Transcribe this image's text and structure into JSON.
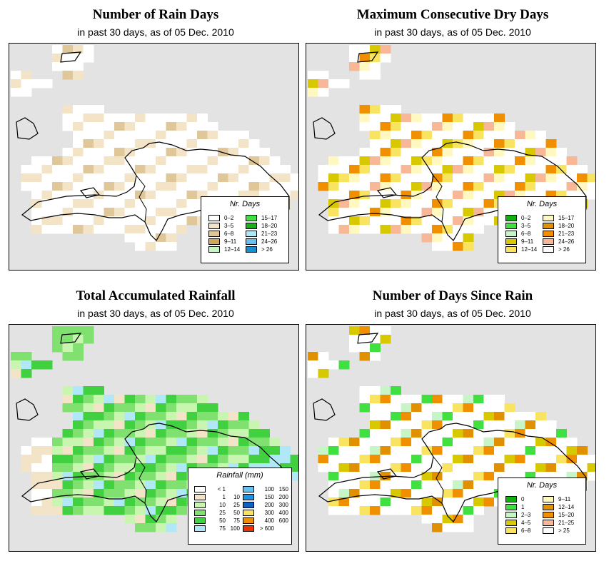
{
  "panels": [
    {
      "id": "rain-days",
      "title": "Number of Rain Days",
      "subtitle": "in past 30 days, as of  05 Dec. 2010",
      "legend": {
        "title": "Nr. Days",
        "items": [
          {
            "label": "0–2",
            "color": "#ffffff"
          },
          {
            "label": "3–5",
            "color": "#f3e4c8"
          },
          {
            "label": "6–8",
            "color": "#e0c79a"
          },
          {
            "label": "9–11",
            "color": "#cfa85a"
          },
          {
            "label": "12–14",
            "color": "#c8f5c8"
          },
          {
            "label": "15–17",
            "color": "#40e040"
          },
          {
            "label": "18–20",
            "color": "#18b018"
          },
          {
            "label": "21–23",
            "color": "#b0e8f8"
          },
          {
            "label": "24–26",
            "color": "#66c0f0"
          },
          {
            "label": "> 26",
            "color": "#1890d0"
          }
        ]
      }
    },
    {
      "id": "dry-days",
      "title": "Maximum Consecutive Dry Days",
      "subtitle": "in past 30 days, as of  05 Dec. 2010",
      "legend": {
        "title": "Nr. Days",
        "items": [
          {
            "label": "0–2",
            "color": "#10b010"
          },
          {
            "label": "3–5",
            "color": "#40e040"
          },
          {
            "label": "6–8",
            "color": "#c8f5c8"
          },
          {
            "label": "9–11",
            "color": "#d8c800"
          },
          {
            "label": "12–14",
            "color": "#f8e460"
          },
          {
            "label": "15–17",
            "color": "#fff8c0"
          },
          {
            "label": "18–20",
            "color": "#e09000"
          },
          {
            "label": "21–23",
            "color": "#f09000"
          },
          {
            "label": "24–26",
            "color": "#f8b898"
          },
          {
            "label": "> 26",
            "color": "#ffffff"
          }
        ]
      }
    },
    {
      "id": "rainfall",
      "title": "Total Accumulated Rainfall",
      "subtitle": "in past 30 days, as of  05 Dec. 2010",
      "legend": {
        "title": "Rainfall (mm)",
        "items": [
          {
            "lo": "< 1",
            "hi": "",
            "color": "#ffffff"
          },
          {
            "lo": "1",
            "hi": "10",
            "color": "#f3e4c8"
          },
          {
            "lo": "10",
            "hi": "25",
            "color": "#c8f5b0"
          },
          {
            "lo": "25",
            "hi": "50",
            "color": "#80e070"
          },
          {
            "lo": "50",
            "hi": "75",
            "color": "#40d040"
          },
          {
            "lo": "75",
            "hi": "100",
            "color": "#b0e8f8"
          },
          {
            "lo": "100",
            "hi": "150",
            "color": "#66c0f0"
          },
          {
            "lo": "150",
            "hi": "200",
            "color": "#2090e0"
          },
          {
            "lo": "200",
            "hi": "300",
            "color": "#1060c0"
          },
          {
            "lo": "300",
            "hi": "400",
            "color": "#f8e460"
          },
          {
            "lo": "400",
            "hi": "600",
            "color": "#f09000"
          },
          {
            "lo": "> 600",
            "hi": "",
            "color": "#f03000"
          }
        ]
      }
    },
    {
      "id": "since-rain",
      "title": "Number of Days Since Rain",
      "subtitle": "in past 30 days, as of  05 Dec. 2010",
      "legend": {
        "title": "Nr. Days",
        "items": [
          {
            "label": "0",
            "color": "#10b010"
          },
          {
            "label": "1",
            "color": "#40e040"
          },
          {
            "label": "2–3",
            "color": "#c8f5c8"
          },
          {
            "label": "4–5",
            "color": "#d8c800"
          },
          {
            "label": "6–8",
            "color": "#f8e460"
          },
          {
            "label": "9–11",
            "color": "#fff8c0"
          },
          {
            "label": "12–14",
            "color": "#e09000"
          },
          {
            "label": "15–20",
            "color": "#f09000"
          },
          {
            "label": "21–25",
            "color": "#f8b898"
          },
          {
            "label": "> 25",
            "color": "#ffffff"
          }
        ]
      }
    }
  ]
}
